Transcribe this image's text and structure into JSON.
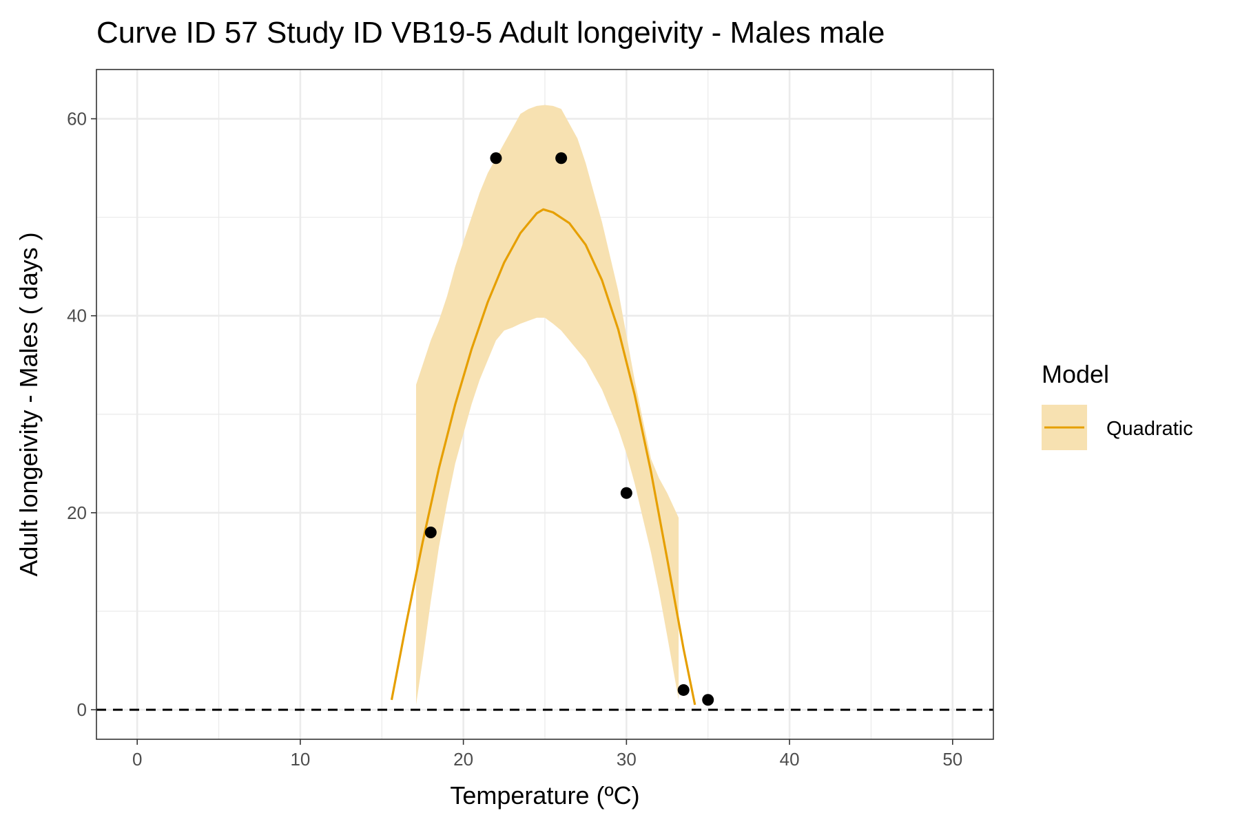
{
  "colors": {
    "line": "#E69F00",
    "band": "#F7E1B1",
    "points": "#000000",
    "grid": "#EBEBEB",
    "panel_border": "#333333",
    "tick_text": "#4D4D4D"
  },
  "chart_data": {
    "type": "line",
    "title": "Curve ID 57 Study ID VB19-5 Adult longeivity - Males male",
    "xlabel": "Temperature (ºC)",
    "ylabel": "Adult longeivity - Males ( days )",
    "xlim": [
      -2.5,
      52.5
    ],
    "ylim": [
      -3,
      65
    ],
    "x_ticks": [
      0,
      10,
      20,
      30,
      40,
      50
    ],
    "y_ticks": [
      0,
      20,
      40,
      60
    ],
    "x_tick_labels": [
      "0",
      "10",
      "20",
      "30",
      "40",
      "50"
    ],
    "y_tick_labels": [
      "0",
      "20",
      "40",
      "60"
    ],
    "grid": true,
    "reference_line": {
      "y": 0,
      "style": "dashed"
    },
    "legend": {
      "title": "Model",
      "position": "right",
      "entries": [
        "Quadratic"
      ]
    },
    "points": [
      {
        "x": 18,
        "y": 18
      },
      {
        "x": 22,
        "y": 56
      },
      {
        "x": 26,
        "y": 56
      },
      {
        "x": 30,
        "y": 22
      },
      {
        "x": 33.5,
        "y": 2
      },
      {
        "x": 35,
        "y": 1
      }
    ],
    "series": [
      {
        "name": "Quadratic",
        "x": [
          15.6,
          16.5,
          17.5,
          18.5,
          19.5,
          20.5,
          21.5,
          22.5,
          23.5,
          24.5,
          24.9,
          25.5,
          26.5,
          27.5,
          28.5,
          29.5,
          30.5,
          31.5,
          32.5,
          33.5,
          34.2
        ],
        "y": [
          1.0,
          8.8,
          17.0,
          24.5,
          31.0,
          36.6,
          41.4,
          45.4,
          48.4,
          50.4,
          50.8,
          50.5,
          49.4,
          47.2,
          43.6,
          38.6,
          32.0,
          24.2,
          15.3,
          6.2,
          0.5
        ]
      }
    ],
    "confidence_band": {
      "x": [
        17.1,
        17.5,
        18.0,
        18.5,
        19.0,
        19.5,
        20.0,
        20.5,
        21.0,
        21.5,
        22.0,
        22.5,
        23.0,
        23.5,
        24.0,
        24.5,
        25.0,
        25.5,
        26.0,
        26.5,
        27.0,
        27.5,
        28.0,
        28.5,
        29.0,
        29.5,
        30.0,
        30.5,
        31.0,
        31.5,
        32.0,
        32.5,
        33.2
      ],
      "upper": [
        33.0,
        35.0,
        37.5,
        39.5,
        42.0,
        45.0,
        47.5,
        50.0,
        52.5,
        54.5,
        56.0,
        57.5,
        59.0,
        60.5,
        61.0,
        61.3,
        61.4,
        61.3,
        61.0,
        59.5,
        58.0,
        55.5,
        52.5,
        49.5,
        46.0,
        42.5,
        38.0,
        33.5,
        29.5,
        25.5,
        23.5,
        22.0,
        19.5
      ],
      "lower": [
        0.5,
        5.0,
        11.0,
        16.5,
        21.0,
        25.0,
        28.0,
        31.0,
        33.5,
        35.5,
        37.5,
        38.5,
        38.8,
        39.2,
        39.5,
        39.8,
        39.8,
        39.2,
        38.5,
        37.5,
        36.5,
        35.5,
        34.0,
        32.5,
        30.5,
        28.5,
        26.0,
        23.0,
        19.5,
        16.0,
        12.0,
        7.5,
        1.0
      ]
    }
  }
}
